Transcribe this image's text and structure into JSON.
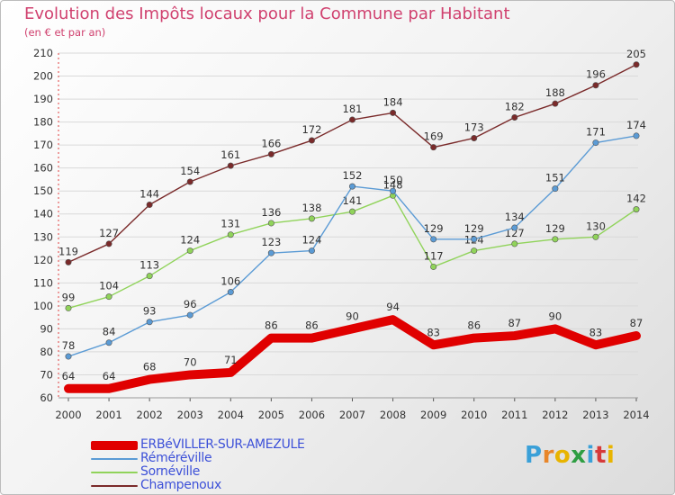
{
  "header": {
    "title": "Evolution des Impôts locaux pour la Commune par Habitant",
    "subtitle": "(en € et par an)"
  },
  "brand": {
    "letters": [
      "P",
      "r",
      "o",
      "x",
      "i",
      "t",
      "i"
    ],
    "colors": [
      "#3aa0d8",
      "#e8862a",
      "#e8b400",
      "#2f9e43",
      "#3aa0d8",
      "#d63a3a",
      "#e8b400"
    ]
  },
  "chart_data": {
    "type": "line",
    "title": "Evolution des Impôts locaux pour la Commune par Habitant",
    "subtitle": "(en € et par an)",
    "x": [
      "2000",
      "2001",
      "2002",
      "2003",
      "2004",
      "2005",
      "2006",
      "2007",
      "2008",
      "2009",
      "2010",
      "2011",
      "2012",
      "2013",
      "2014"
    ],
    "ylim": [
      60,
      210
    ],
    "yticks": [
      60,
      70,
      80,
      90,
      100,
      110,
      120,
      130,
      140,
      150,
      160,
      170,
      180,
      190,
      200,
      210
    ],
    "grid": true,
    "legend_position": "bottom-left",
    "series": [
      {
        "name": "ERBéVILLER-SUR-AMEZULE",
        "color": "#e00000",
        "values": [
          64,
          64,
          68,
          70,
          71,
          86,
          86,
          90,
          94,
          83,
          86,
          87,
          90,
          83,
          87
        ]
      },
      {
        "name": "Réméréville",
        "color": "#5b9bd5",
        "values": [
          78,
          84,
          93,
          96,
          106,
          123,
          124,
          152,
          150,
          129,
          129,
          134,
          151,
          171,
          174
        ]
      },
      {
        "name": "Sornéville",
        "color": "#90d35a",
        "values": [
          99,
          104,
          113,
          124,
          131,
          136,
          138,
          141,
          148,
          117,
          124,
          127,
          129,
          130,
          142
        ]
      },
      {
        "name": "Champenoux",
        "color": "#7a2a2a",
        "values": [
          119,
          127,
          144,
          154,
          161,
          166,
          172,
          181,
          184,
          169,
          173,
          182,
          188,
          196,
          205
        ]
      }
    ]
  }
}
